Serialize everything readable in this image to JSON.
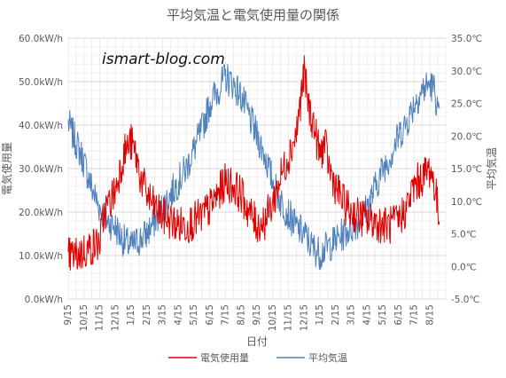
{
  "chart_data": {
    "type": "line",
    "title": "平均気温と電気使用量の関係",
    "watermark": "ismart-blog.com",
    "xlabel": "日付",
    "ylabel_left": "電気使用量",
    "ylabel_right": "平均気温",
    "x_tick_labels": [
      "9/15",
      "10/15",
      "11/15",
      "12/15",
      "1/15",
      "2/15",
      "3/15",
      "4/15",
      "5/15",
      "6/15",
      "7/15",
      "8/15",
      "9/15",
      "10/15",
      "11/15",
      "12/15",
      "1/15",
      "2/15",
      "3/15",
      "4/15",
      "5/15",
      "6/15",
      "7/15",
      "8/15"
    ],
    "y_left_ticks": [
      "0.0kW/h",
      "10.0kW/h",
      "20.0kW/h",
      "30.0kW/h",
      "40.0kW/h",
      "50.0kW/h",
      "60.0kW/h"
    ],
    "y_right_ticks": [
      "-5.0℃",
      "0.0℃",
      "5.0℃",
      "10.0℃",
      "15.0℃",
      "20.0℃",
      "25.0℃",
      "30.0℃",
      "35.0℃"
    ],
    "ylim_left": [
      0,
      60
    ],
    "ylim_right": [
      -5,
      35
    ],
    "grid": true,
    "legend_position": "bottom",
    "series": [
      {
        "name": "電気使用量",
        "axis": "left",
        "color": "#e00000",
        "x_month_index": [
          0,
          0.5,
          1,
          1.5,
          2,
          2.3,
          2.6,
          3,
          3.3,
          3.6,
          4,
          4.3,
          4.6,
          5,
          5.5,
          6,
          6.5,
          7,
          7.5,
          8,
          8.5,
          9,
          9.5,
          10,
          10.5,
          11,
          11.5,
          12,
          12.5,
          13,
          13.5,
          14,
          14.5,
          15,
          15.3,
          15.6,
          16,
          16.3,
          16.6,
          17,
          17.5,
          18,
          18.5,
          19,
          19.5,
          20,
          20.5,
          21,
          21.5,
          22,
          22.5,
          23,
          23.3,
          23.6
        ],
        "values": [
          10,
          10,
          11,
          12,
          13,
          20,
          22,
          25,
          30,
          34,
          36,
          33,
          28,
          24,
          21,
          19,
          18,
          17,
          17,
          18,
          19,
          21,
          24,
          27,
          26,
          24,
          20,
          17,
          18,
          22,
          28,
          33,
          38,
          52,
          44,
          40,
          33,
          36,
          30,
          26,
          22,
          20,
          19,
          18,
          18,
          17,
          17,
          18,
          21,
          26,
          28,
          30,
          26,
          18
        ]
      },
      {
        "name": "平均気温",
        "axis": "right",
        "color": "#4f81bd",
        "x_month_index": [
          0,
          0.5,
          1,
          1.5,
          2,
          2.5,
          3,
          3.5,
          4,
          4.5,
          5,
          5.5,
          6,
          6.5,
          7,
          7.5,
          8,
          8.5,
          9,
          9.5,
          10,
          10.5,
          11,
          11.5,
          12,
          12.5,
          13,
          13.5,
          14,
          14.5,
          15,
          15.5,
          16,
          16.5,
          17,
          17.5,
          18,
          18.5,
          19,
          19.5,
          20,
          20.5,
          21,
          21.5,
          22,
          22.5,
          23,
          23.3,
          23.6
        ],
        "values": [
          22,
          19,
          16,
          12,
          9,
          7,
          6,
          4,
          3,
          4,
          5,
          7,
          9,
          11,
          13,
          15,
          18,
          21,
          25,
          27,
          29,
          28,
          26,
          23,
          20,
          17,
          13,
          10,
          8,
          6,
          5,
          3,
          2,
          3,
          4,
          5,
          6,
          7,
          9,
          12,
          15,
          17,
          20,
          22,
          25,
          27,
          28,
          27,
          22
        ]
      }
    ]
  }
}
